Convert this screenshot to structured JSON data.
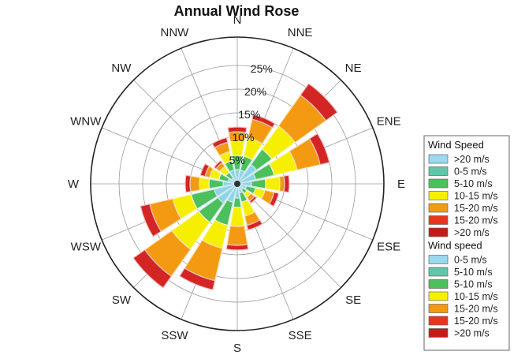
{
  "chart_data": {
    "type": "wind-rose",
    "title": "Annual Wind Rose",
    "radial_ticks": [
      "5%",
      "10%",
      "15%",
      "20%",
      "25%"
    ],
    "radial_values": [
      5,
      10,
      15,
      20,
      25
    ],
    "radial_max": 31,
    "directions": [
      "N",
      "NNE",
      "NE",
      "ENE",
      "E",
      "ESE",
      "SE",
      "SSE",
      "S",
      "SSW",
      "SW",
      "WSW",
      "W",
      "WNW",
      "NW",
      "NNW"
    ],
    "bands": [
      "0-5 m/s",
      "5-10 m/s",
      "10-15 m/s",
      "15-20 m/s",
      ">20 m/s"
    ],
    "band_colors": [
      "#8fd3e6",
      "#4cc05a",
      "#f6f000",
      "#f39a12",
      "#d42525"
    ],
    "band_edges": [
      "#d0e8f0",
      "#d0e8f0",
      "#f7f7c8",
      "#f7e1b5",
      "#f2c2c2"
    ],
    "cumulative": [
      [
        3,
        6,
        9,
        11,
        12
      ],
      [
        3,
        6,
        10,
        14,
        15
      ],
      [
        5,
        9,
        15,
        23,
        26
      ],
      [
        4,
        8,
        13,
        18,
        20
      ],
      [
        3,
        6,
        9,
        10,
        11
      ],
      [
        2,
        4,
        6,
        8,
        9
      ],
      [
        1.5,
        2.5,
        3.5,
        4.5,
        5
      ],
      [
        2,
        4,
        7,
        9,
        10
      ],
      [
        3,
        5,
        9,
        13,
        14
      ],
      [
        4,
        9,
        14,
        21,
        23
      ],
      [
        5,
        10,
        17,
        24,
        27
      ],
      [
        5,
        10,
        14,
        19,
        21
      ],
      [
        3,
        6,
        8,
        10,
        11
      ],
      [
        2,
        4,
        6,
        7,
        8
      ],
      [
        1.5,
        3,
        4.5,
        5.5,
        6
      ],
      [
        3,
        5,
        7,
        9,
        10
      ]
    ],
    "legend": [
      {
        "heading": "Wind Speed",
        "items": [
          {
            "label": ">20 m/s",
            "color": "#9ad9f0"
          },
          {
            "label": "0-5 m/s",
            "color": "#5fc7a9"
          },
          {
            "label": "5-10 m/s",
            "color": "#4cc05a"
          },
          {
            "label": "10-15 m/s",
            "color": "#f6f000"
          },
          {
            "label": "15-20 m/s",
            "color": "#f39a12"
          },
          {
            "label": "15-20 m/s",
            "color": "#e8361e"
          },
          {
            "label": ">20 m/s",
            "color": "#c81818"
          }
        ]
      },
      {
        "heading": "Wind speed",
        "items": [
          {
            "label": "0-5 m/s",
            "color": "#9ad9f0"
          },
          {
            "label": "5-10 m/s",
            "color": "#5fc7a9"
          },
          {
            "label": "5-10 m/s",
            "color": "#4cc05a"
          },
          {
            "label": "10-15 m/s",
            "color": "#f6f000"
          },
          {
            "label": "15-20 m/s",
            "color": "#f39a12"
          },
          {
            "label": "15-20 m/s",
            "color": "#e8361e"
          },
          {
            "label": ">20 m/s",
            "color": "#c81818"
          }
        ]
      }
    ]
  }
}
